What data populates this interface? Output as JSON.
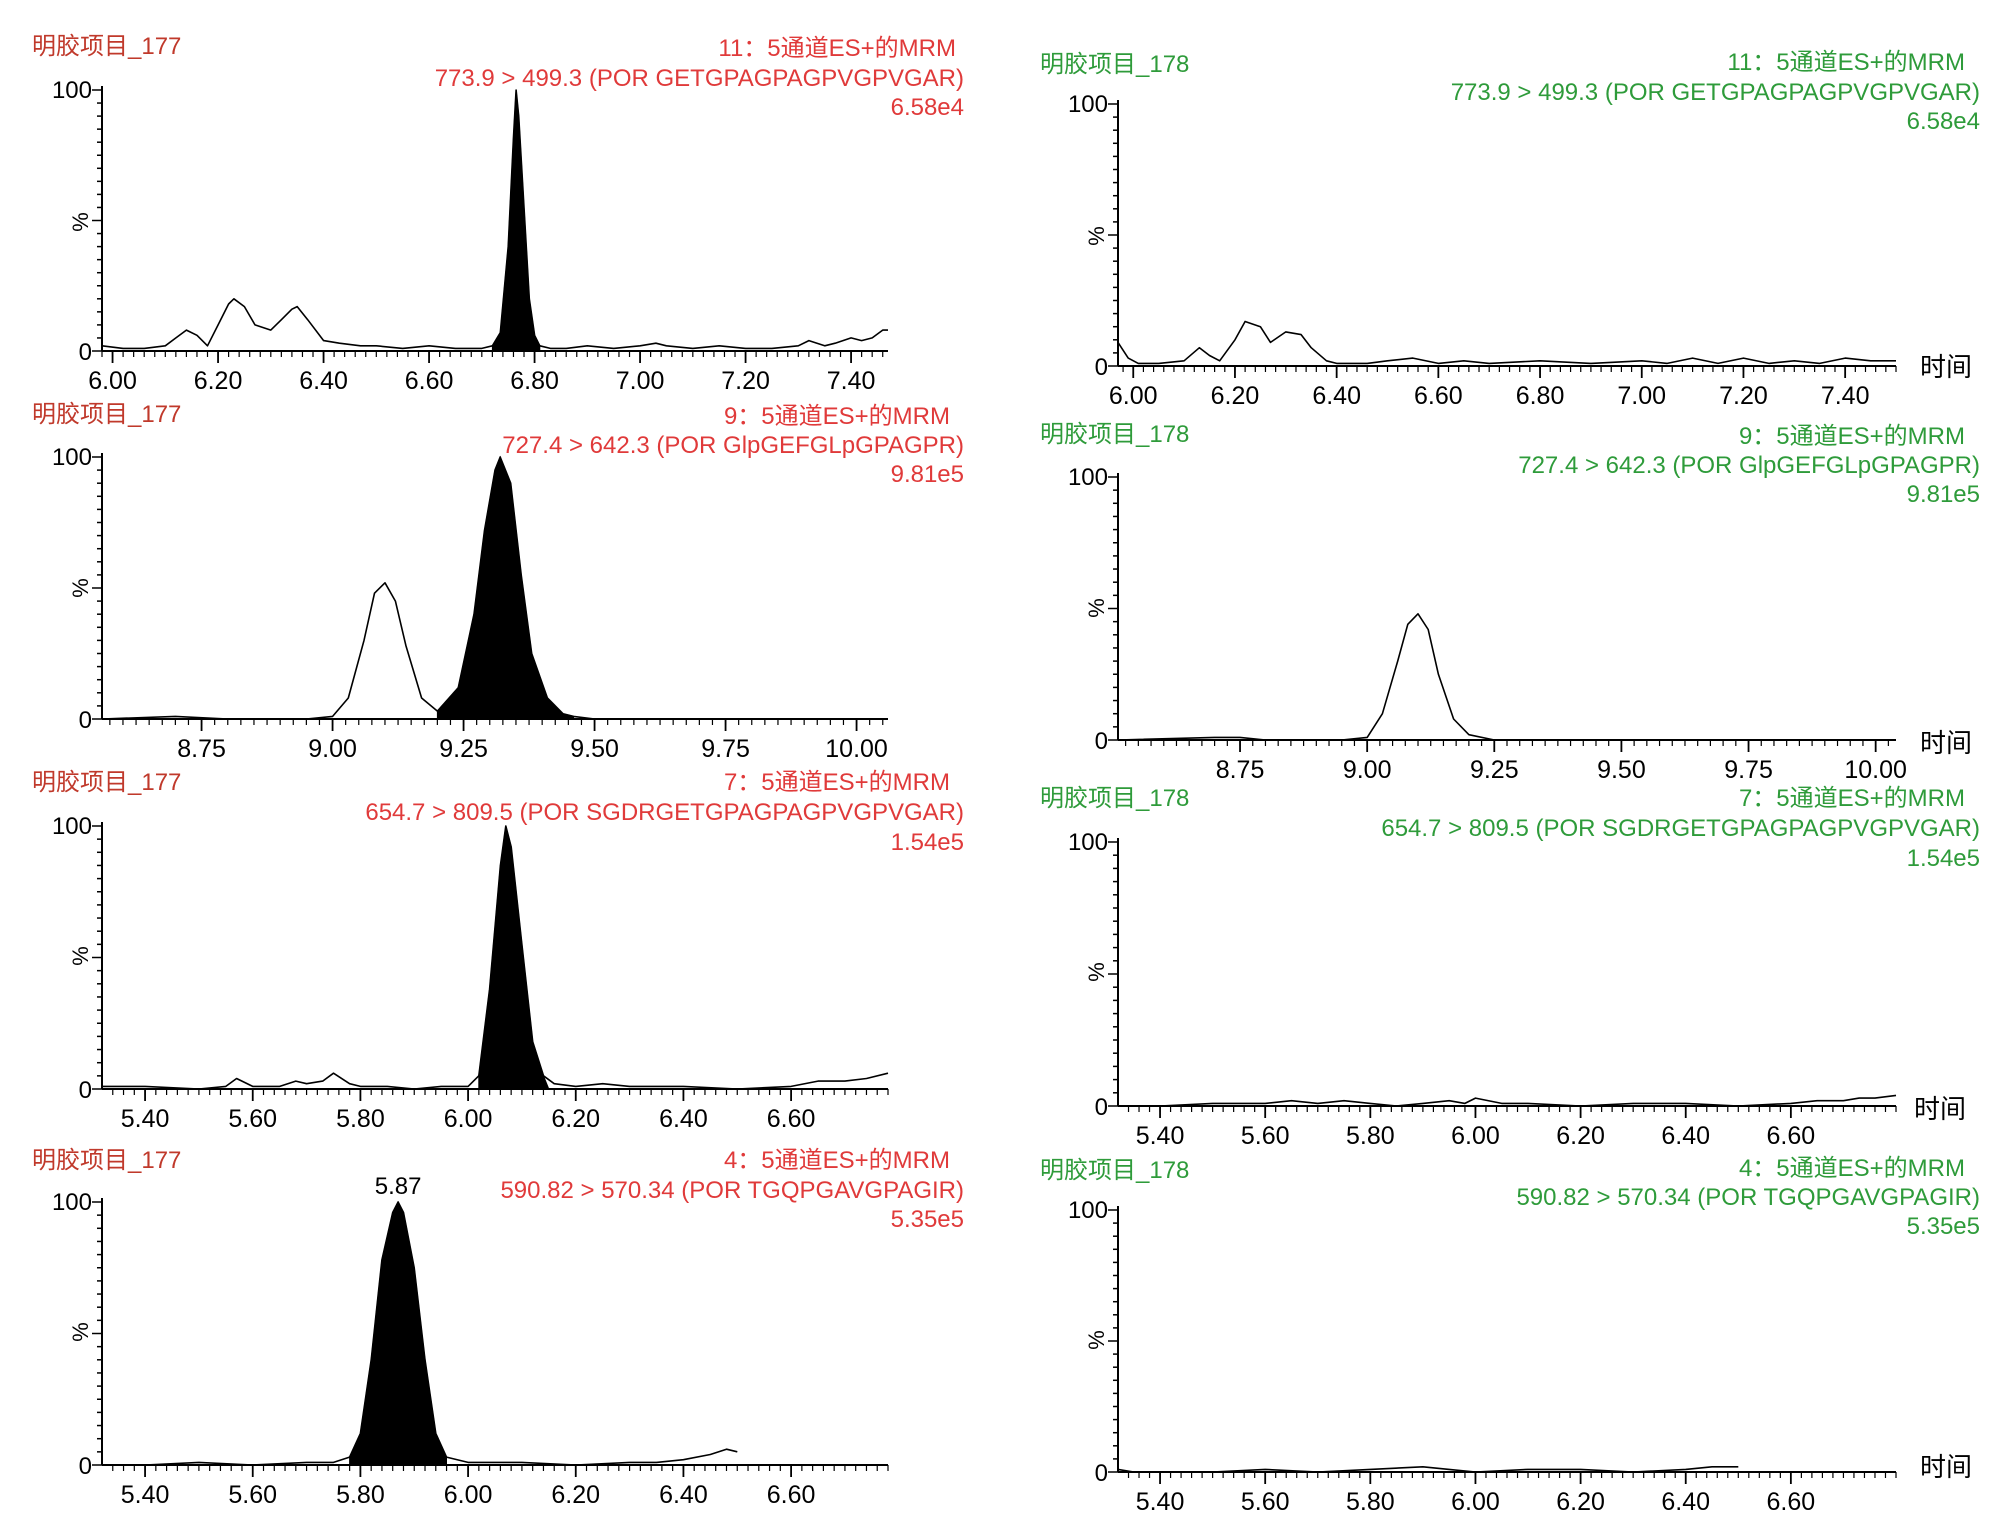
{
  "chart_data": [
    {
      "type": "line",
      "sample": "明胶项目_177",
      "channel": "11：5通道ES+的MRM",
      "transition": "773.9 > 499.3 (POR GETGPAGPAGPVGPVGAR)",
      "intensity": "6.58e4",
      "ylabel": "%",
      "xlabel": "",
      "y_ticks": [
        "0",
        "100"
      ],
      "x_ticks": [
        "6.00",
        "6.20",
        "6.40",
        "6.60",
        "6.80",
        "7.00",
        "7.20",
        "7.40"
      ],
      "xlim": [
        5.98,
        7.47
      ],
      "ylim": [
        0,
        100
      ],
      "peak_label": "",
      "filled_x": [
        6.72,
        6.81
      ],
      "x": [
        5.98,
        6.02,
        6.06,
        6.1,
        6.12,
        6.14,
        6.16,
        6.18,
        6.2,
        6.22,
        6.23,
        6.25,
        6.27,
        6.3,
        6.32,
        6.34,
        6.35,
        6.37,
        6.4,
        6.43,
        6.47,
        6.5,
        6.55,
        6.6,
        6.65,
        6.7,
        6.72,
        6.735,
        6.75,
        6.76,
        6.765,
        6.77,
        6.78,
        6.79,
        6.8,
        6.81,
        6.83,
        6.86,
        6.9,
        6.95,
        7.0,
        7.03,
        7.05,
        7.1,
        7.15,
        7.2,
        7.25,
        7.3,
        7.32,
        7.35,
        7.37,
        7.4,
        7.42,
        7.44,
        7.46,
        7.47
      ],
      "values": [
        2,
        1,
        1,
        2,
        5,
        8,
        6,
        2,
        10,
        18,
        20,
        17,
        10,
        8,
        12,
        16,
        17,
        12,
        4,
        3,
        2,
        2,
        1,
        2,
        1,
        1,
        2,
        7,
        40,
        82,
        100,
        90,
        55,
        20,
        6,
        2,
        1,
        1,
        2,
        1,
        2,
        3,
        2,
        1,
        2,
        1,
        1,
        2,
        4,
        2,
        3,
        5,
        4,
        5,
        8,
        8
      ]
    },
    {
      "type": "line",
      "sample": "明胶项目_178",
      "channel": "11：5通道ES+的MRM",
      "transition": "773.9 > 499.3 (POR GETGPAGPAGPVGPVGAR)",
      "intensity": "6.58e4",
      "ylabel": "%",
      "xlabel": "时间",
      "y_ticks": [
        "0",
        "100"
      ],
      "x_ticks": [
        "6.00",
        "6.20",
        "6.40",
        "6.60",
        "6.80",
        "7.00",
        "7.20",
        "7.40"
      ],
      "xlim": [
        5.97,
        7.5
      ],
      "ylim": [
        0,
        100
      ],
      "peak_label": "",
      "filled_x": [],
      "x": [
        5.97,
        5.99,
        6.01,
        6.05,
        6.1,
        6.13,
        6.15,
        6.17,
        6.2,
        6.22,
        6.25,
        6.27,
        6.3,
        6.33,
        6.35,
        6.38,
        6.4,
        6.43,
        6.46,
        6.5,
        6.55,
        6.6,
        6.65,
        6.7,
        6.8,
        6.9,
        7.0,
        7.05,
        7.1,
        7.15,
        7.2,
        7.25,
        7.3,
        7.35,
        7.4,
        7.45,
        7.5
      ],
      "values": [
        9,
        3,
        1,
        1,
        2,
        7,
        4,
        2,
        10,
        17,
        15,
        9,
        13,
        12,
        7,
        2,
        1,
        1,
        1,
        2,
        3,
        1,
        2,
        1,
        2,
        1,
        2,
        1,
        3,
        1,
        3,
        1,
        2,
        1,
        3,
        2,
        2
      ]
    },
    {
      "type": "line",
      "sample": "明胶项目_177",
      "channel": "9：5通道ES+的MRM",
      "transition": "727.4 > 642.3 (POR GlpGEFGLpGPAGPR)",
      "intensity": "9.81e5",
      "ylabel": "%",
      "xlabel": "",
      "y_ticks": [
        "0",
        "100"
      ],
      "x_ticks": [
        "8.75",
        "9.00",
        "9.25",
        "9.50",
        "9.75",
        "10.00"
      ],
      "xlim": [
        8.56,
        10.06
      ],
      "ylim": [
        0,
        100
      ],
      "peak_label": "",
      "filled_x": [
        9.2,
        9.46
      ],
      "x": [
        8.56,
        8.7,
        8.8,
        8.95,
        9.0,
        9.03,
        9.06,
        9.08,
        9.1,
        9.12,
        9.14,
        9.17,
        9.2,
        9.24,
        9.27,
        9.29,
        9.31,
        9.32,
        9.34,
        9.36,
        9.38,
        9.41,
        9.44,
        9.46,
        9.5,
        9.6,
        9.8,
        10.0,
        10.06
      ],
      "values": [
        0,
        1,
        0,
        0,
        1,
        8,
        30,
        48,
        52,
        45,
        28,
        8,
        3,
        12,
        40,
        72,
        95,
        100,
        90,
        55,
        25,
        8,
        2,
        1,
        0,
        0,
        0,
        0,
        0
      ]
    },
    {
      "type": "line",
      "sample": "明胶项目_178",
      "channel": "9：5通道ES+的MRM",
      "transition": "727.4 > 642.3 (POR GlpGEFGLpGPAGPR)",
      "intensity": "9.81e5",
      "ylabel": "%",
      "xlabel": "时间",
      "y_ticks": [
        "0",
        "100"
      ],
      "x_ticks": [
        "8.75",
        "9.00",
        "9.25",
        "9.50",
        "9.75",
        "10.00"
      ],
      "xlim": [
        8.51,
        10.04
      ],
      "ylim": [
        0,
        100
      ],
      "peak_label": "",
      "filled_x": [],
      "x": [
        8.51,
        8.7,
        8.75,
        8.8,
        8.95,
        9.0,
        9.03,
        9.06,
        9.08,
        9.1,
        9.12,
        9.14,
        9.17,
        9.2,
        9.25,
        9.5,
        9.75,
        10.04
      ],
      "values": [
        0,
        1,
        1,
        0,
        0,
        1,
        10,
        30,
        44,
        48,
        42,
        25,
        8,
        2,
        0,
        0,
        0,
        0
      ]
    },
    {
      "type": "line",
      "sample": "明胶项目_177",
      "channel": "7：5通道ES+的MRM",
      "transition": "654.7 > 809.5 (POR SGDRGETGPAGPAGPVGPVGAR)",
      "intensity": "1.54e5",
      "ylabel": "%",
      "xlabel": "",
      "y_ticks": [
        "0",
        "100"
      ],
      "x_ticks": [
        "5.40",
        "5.60",
        "5.80",
        "6.00",
        "6.20",
        "6.40",
        "6.60"
      ],
      "xlim": [
        5.32,
        6.78
      ],
      "ylim": [
        0,
        100
      ],
      "peak_label": "",
      "filled_x": [
        6.02,
        6.15
      ],
      "x": [
        5.32,
        5.4,
        5.5,
        5.55,
        5.57,
        5.6,
        5.65,
        5.68,
        5.7,
        5.73,
        5.75,
        5.78,
        5.8,
        5.85,
        5.9,
        5.95,
        6.0,
        6.02,
        6.04,
        6.06,
        6.07,
        6.08,
        6.1,
        6.12,
        6.14,
        6.16,
        6.2,
        6.25,
        6.3,
        6.4,
        6.5,
        6.6,
        6.65,
        6.7,
        6.74,
        6.78
      ],
      "values": [
        1,
        1,
        0,
        1,
        4,
        1,
        1,
        3,
        2,
        3,
        6,
        2,
        1,
        1,
        0,
        1,
        1,
        5,
        38,
        85,
        100,
        92,
        55,
        18,
        5,
        2,
        1,
        2,
        1,
        1,
        0,
        1,
        3,
        3,
        4,
        6
      ]
    },
    {
      "type": "line",
      "sample": "明胶项目_178",
      "channel": "7：5通道ES+的MRM",
      "transition": "654.7 > 809.5 (POR SGDRGETGPAGPAGPVGPVGAR)",
      "intensity": "1.54e5",
      "ylabel": "%",
      "xlabel": "时间",
      "y_ticks": [
        "0",
        "100"
      ],
      "x_ticks": [
        "5.40",
        "5.60",
        "5.80",
        "6.00",
        "6.20",
        "6.40",
        "6.60"
      ],
      "xlim": [
        5.32,
        6.8
      ],
      "ylim": [
        0,
        100
      ],
      "peak_label": "",
      "filled_x": [],
      "x": [
        5.32,
        5.4,
        5.5,
        5.6,
        5.65,
        5.7,
        5.75,
        5.8,
        5.85,
        5.9,
        5.95,
        5.98,
        6.0,
        6.05,
        6.1,
        6.2,
        6.3,
        6.4,
        6.5,
        6.6,
        6.65,
        6.7,
        6.73,
        6.76,
        6.8
      ],
      "values": [
        0,
        0,
        1,
        1,
        2,
        1,
        2,
        1,
        0,
        1,
        2,
        1,
        3,
        1,
        1,
        0,
        1,
        1,
        0,
        1,
        2,
        2,
        3,
        3,
        4
      ]
    },
    {
      "type": "line",
      "sample": "明胶项目_177",
      "channel": "4：5通道ES+的MRM",
      "transition": "590.82 > 570.34 (POR TGQPGAVGPAGIR)",
      "intensity": "5.35e5",
      "ylabel": "%",
      "xlabel": "",
      "y_ticks": [
        "0",
        "100"
      ],
      "x_ticks": [
        "5.40",
        "5.60",
        "5.80",
        "6.00",
        "6.20",
        "6.40",
        "6.60"
      ],
      "xlim": [
        5.32,
        6.78
      ],
      "ylim": [
        0,
        100
      ],
      "peak_label": "5.87",
      "filled_x": [
        5.78,
        5.96
      ],
      "x": [
        5.32,
        5.4,
        5.5,
        5.6,
        5.7,
        5.75,
        5.78,
        5.8,
        5.82,
        5.84,
        5.86,
        5.87,
        5.88,
        5.9,
        5.92,
        5.94,
        5.96,
        6.0,
        6.1,
        6.2,
        6.3,
        6.35,
        6.4,
        6.45,
        6.48,
        6.5
      ],
      "values": [
        0,
        0,
        1,
        0,
        1,
        1,
        3,
        12,
        40,
        78,
        96,
        100,
        96,
        75,
        40,
        12,
        3,
        1,
        1,
        0,
        1,
        1,
        2,
        4,
        6,
        5
      ]
    },
    {
      "type": "line",
      "sample": "明胶项目_178",
      "channel": "4：5通道ES+的MRM",
      "transition": "590.82 > 570.34 (POR TGQPGAVGPAGIR)",
      "intensity": "5.35e5",
      "ylabel": "%",
      "xlabel": "时间",
      "y_ticks": [
        "0",
        "100"
      ],
      "x_ticks": [
        "5.40",
        "5.60",
        "5.80",
        "6.00",
        "6.20",
        "6.40",
        "6.60"
      ],
      "xlim": [
        5.32,
        6.8
      ],
      "ylim": [
        0,
        100
      ],
      "peak_label": "",
      "filled_x": [],
      "x": [
        5.32,
        5.35,
        5.4,
        5.5,
        5.6,
        5.7,
        5.8,
        5.9,
        5.95,
        6.0,
        6.1,
        6.2,
        6.3,
        6.4,
        6.45,
        6.5
      ],
      "values": [
        1,
        0,
        0,
        0,
        1,
        0,
        1,
        2,
        1,
        0,
        1,
        1,
        0,
        1,
        2,
        2
      ]
    }
  ],
  "colors": {
    "left_label": "#e03a3a",
    "left_sample": "#c0392b",
    "right_label": "#2e9b3a",
    "axis": "#000000",
    "trace": "#000000",
    "fill": "#000000"
  }
}
